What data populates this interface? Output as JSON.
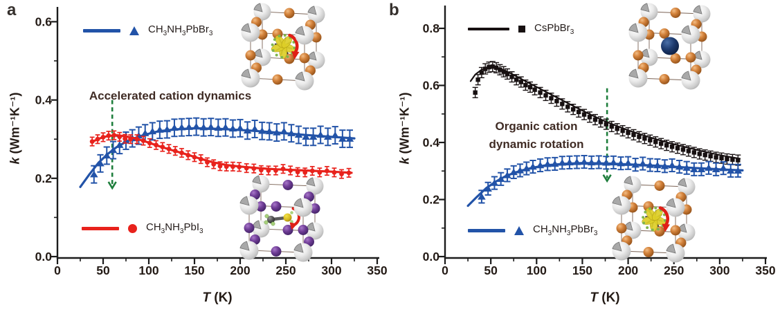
{
  "figure": {
    "panel_a": {
      "letter": "a",
      "ylabel_prefix": "k",
      "ylabel_suffix": " (Wm⁻¹K⁻¹)",
      "xlabel_prefix": "T",
      "xlabel_suffix": " (K)"
    },
    "panel_b": {
      "letter": "b",
      "ylabel_prefix": "k",
      "ylabel_suffix": " (Wm⁻¹K⁻¹)",
      "xlabel_prefix": "T",
      "xlabel_suffix": " (K)"
    }
  },
  "chart_data": [
    {
      "panel": "a",
      "type": "scatter",
      "xlabel": "T (K)",
      "ylabel": "k (Wm⁻¹K⁻¹)",
      "xlim": [
        0,
        350
      ],
      "ylim": [
        0,
        0.64
      ],
      "x_ticks": [
        0,
        50,
        100,
        150,
        200,
        250,
        300,
        350
      ],
      "y_ticks": [
        0,
        0.2,
        0.4,
        0.6
      ],
      "y_tick_labels": [
        "0.0",
        "0.2",
        "0.4",
        "0.6"
      ],
      "grid": false,
      "annotation": {
        "text": "Accelerated cation dynamics",
        "color": "#3f2b24",
        "x_k": 124,
        "y_k": 0.41
      },
      "arrow": {
        "x_k": 60,
        "y_from_k": 0.4,
        "y_to_k": 0.175,
        "color": "#1e7e3c"
      },
      "series": [
        {
          "name": "CH3NH3PbBr3",
          "formula": "CH_3NH_3PbBr_3",
          "color": "#2253a8",
          "marker": "triangle",
          "err": 0.022,
          "x": [
            40,
            47,
            54,
            61,
            68,
            75,
            82,
            89,
            96,
            104,
            112,
            120,
            128,
            136,
            144,
            152,
            160,
            168,
            176,
            184,
            192,
            200,
            208,
            216,
            224,
            232,
            240,
            248,
            256,
            264,
            272,
            280,
            288,
            296,
            304,
            312,
            320
          ],
          "y": [
            0.21,
            0.238,
            0.258,
            0.272,
            0.285,
            0.296,
            0.302,
            0.309,
            0.315,
            0.32,
            0.324,
            0.325,
            0.329,
            0.33,
            0.331,
            0.332,
            0.33,
            0.331,
            0.329,
            0.33,
            0.327,
            0.328,
            0.322,
            0.326,
            0.321,
            0.32,
            0.317,
            0.32,
            0.315,
            0.311,
            0.306,
            0.306,
            0.311,
            0.306,
            0.31,
            0.301,
            0.301
          ],
          "trend": [
            [
              25,
              0.178
            ],
            [
              35,
              0.21
            ],
            [
              45,
              0.24
            ],
            [
              55,
              0.262
            ],
            [
              65,
              0.28
            ],
            [
              75,
              0.293
            ],
            [
              85,
              0.303
            ],
            [
              95,
              0.311
            ],
            [
              110,
              0.32
            ],
            [
              130,
              0.325
            ],
            [
              150,
              0.328
            ],
            [
              180,
              0.326
            ],
            [
              210,
              0.322
            ],
            [
              240,
              0.317
            ],
            [
              270,
              0.311
            ],
            [
              300,
              0.306
            ],
            [
              325,
              0.302
            ]
          ]
        },
        {
          "name": "CH3NH3PbI3",
          "formula": "CH_3NH_3PbI_3",
          "color": "#e8221c",
          "marker": "circle",
          "err": 0.011,
          "x": [
            38,
            44,
            50,
            56,
            62,
            68,
            74,
            80,
            87,
            94,
            101,
            108,
            115,
            122,
            129,
            136,
            143,
            150,
            157,
            164,
            171,
            178,
            185,
            192,
            199,
            207,
            215,
            223,
            231,
            239,
            247,
            255,
            263,
            271,
            279,
            287,
            295,
            303,
            311,
            319
          ],
          "y": [
            0.294,
            0.3,
            0.305,
            0.309,
            0.31,
            0.306,
            0.301,
            0.3,
            0.3,
            0.296,
            0.29,
            0.285,
            0.28,
            0.275,
            0.27,
            0.265,
            0.259,
            0.254,
            0.249,
            0.241,
            0.236,
            0.231,
            0.23,
            0.23,
            0.229,
            0.226,
            0.225,
            0.221,
            0.22,
            0.22,
            0.224,
            0.22,
            0.216,
            0.215,
            0.219,
            0.215,
            0.219,
            0.215,
            0.211,
            0.214
          ],
          "trend": [
            [
              38,
              0.293
            ],
            [
              45,
              0.301
            ],
            [
              55,
              0.308
            ],
            [
              65,
              0.31
            ],
            [
              75,
              0.307
            ],
            [
              85,
              0.302
            ],
            [
              95,
              0.295
            ],
            [
              110,
              0.283
            ],
            [
              125,
              0.272
            ],
            [
              140,
              0.262
            ],
            [
              155,
              0.251
            ],
            [
              170,
              0.241
            ],
            [
              185,
              0.234
            ],
            [
              200,
              0.23
            ],
            [
              220,
              0.226
            ],
            [
              240,
              0.223
            ],
            [
              260,
              0.221
            ],
            [
              280,
              0.219
            ],
            [
              300,
              0.217
            ],
            [
              322,
              0.214
            ]
          ]
        }
      ],
      "insets": [
        {
          "label": "CH3NH3PbBr3 crystal structure",
          "halide": "Br",
          "cation": "CH3NH3-rotating"
        },
        {
          "label": "CH3NH3PbI3 crystal structure",
          "halide": "I",
          "cation": "CH3NH3-ordered"
        }
      ]
    },
    {
      "panel": "b",
      "type": "scatter",
      "xlabel": "T (K)",
      "ylabel": "k (Wm⁻¹K⁻¹)",
      "xlim": [
        0,
        350
      ],
      "ylim": [
        0,
        0.88
      ],
      "x_ticks": [
        0,
        50,
        100,
        150,
        200,
        250,
        300,
        350
      ],
      "y_ticks": [
        0,
        0.2,
        0.4,
        0.6,
        0.8
      ],
      "y_tick_labels": [
        "0.0",
        "0.2",
        "0.4",
        "0.6",
        "0.8"
      ],
      "grid": false,
      "annotation": {
        "text": "Organic cation\ndynamic rotation",
        "color": "#3f2b24",
        "x_k": 100,
        "y_k": 0.45
      },
      "arrow": {
        "x_k": 177,
        "y_from_k": 0.59,
        "y_to_k": 0.265,
        "color": "#1e7e3c"
      },
      "series": [
        {
          "name": "CsPbBr3",
          "formula": "CsPbBr_3",
          "color": "#171011",
          "marker": "square",
          "err": 0.018,
          "x": [
            33,
            36,
            40,
            44,
            48,
            52,
            56,
            60,
            64,
            68,
            73,
            78,
            83,
            88,
            93,
            98,
            104,
            110,
            116,
            122,
            128,
            134,
            140,
            146,
            152,
            158,
            164,
            170,
            176,
            182,
            188,
            194,
            200,
            206,
            212,
            218,
            224,
            230,
            236,
            242,
            248,
            254,
            260,
            266,
            272,
            278,
            284,
            290,
            296,
            302,
            308,
            314,
            320
          ],
          "y": [
            0.575,
            0.62,
            0.645,
            0.658,
            0.664,
            0.666,
            0.662,
            0.655,
            0.648,
            0.64,
            0.63,
            0.62,
            0.612,
            0.601,
            0.594,
            0.585,
            0.575,
            0.565,
            0.555,
            0.545,
            0.535,
            0.525,
            0.516,
            0.507,
            0.498,
            0.489,
            0.48,
            0.472,
            0.464,
            0.456,
            0.448,
            0.441,
            0.434,
            0.427,
            0.42,
            0.414,
            0.408,
            0.402,
            0.396,
            0.39,
            0.385,
            0.38,
            0.375,
            0.37,
            0.365,
            0.36,
            0.356,
            0.352,
            0.348,
            0.345,
            0.342,
            0.34,
            0.338
          ],
          "trend": [
            [
              28,
              0.615
            ],
            [
              33,
              0.638
            ],
            [
              40,
              0.655
            ],
            [
              48,
              0.665
            ],
            [
              55,
              0.665
            ],
            [
              62,
              0.657
            ],
            [
              70,
              0.645
            ],
            [
              80,
              0.628
            ],
            [
              95,
              0.603
            ],
            [
              110,
              0.578
            ],
            [
              125,
              0.553
            ],
            [
              140,
              0.528
            ],
            [
              155,
              0.504
            ],
            [
              170,
              0.481
            ],
            [
              185,
              0.461
            ],
            [
              200,
              0.443
            ],
            [
              215,
              0.427
            ],
            [
              230,
              0.412
            ],
            [
              245,
              0.398
            ],
            [
              260,
              0.386
            ],
            [
              275,
              0.374
            ],
            [
              290,
              0.363
            ],
            [
              305,
              0.353
            ],
            [
              322,
              0.343
            ]
          ]
        },
        {
          "name": "CH3NH3PbBr3",
          "formula": "CH_3NH_3PbBr_3",
          "color": "#2253a8",
          "marker": "triangle",
          "err": 0.022,
          "x": [
            40,
            47,
            54,
            61,
            68,
            75,
            82,
            89,
            96,
            104,
            112,
            120,
            128,
            136,
            144,
            152,
            160,
            168,
            176,
            184,
            192,
            200,
            208,
            216,
            224,
            232,
            240,
            248,
            256,
            264,
            272,
            280,
            288,
            296,
            304,
            312,
            320
          ],
          "y": [
            0.21,
            0.238,
            0.258,
            0.272,
            0.285,
            0.296,
            0.302,
            0.309,
            0.315,
            0.32,
            0.324,
            0.325,
            0.329,
            0.33,
            0.331,
            0.332,
            0.33,
            0.331,
            0.329,
            0.33,
            0.327,
            0.328,
            0.322,
            0.326,
            0.321,
            0.32,
            0.317,
            0.32,
            0.315,
            0.311,
            0.306,
            0.306,
            0.311,
            0.306,
            0.31,
            0.301,
            0.301
          ],
          "trend": [
            [
              25,
              0.178
            ],
            [
              35,
              0.21
            ],
            [
              45,
              0.24
            ],
            [
              55,
              0.262
            ],
            [
              65,
              0.28
            ],
            [
              75,
              0.293
            ],
            [
              85,
              0.303
            ],
            [
              95,
              0.311
            ],
            [
              110,
              0.32
            ],
            [
              130,
              0.325
            ],
            [
              150,
              0.328
            ],
            [
              180,
              0.326
            ],
            [
              210,
              0.322
            ],
            [
              240,
              0.317
            ],
            [
              270,
              0.311
            ],
            [
              300,
              0.306
            ],
            [
              325,
              0.302
            ]
          ]
        }
      ],
      "insets": [
        {
          "label": "CsPbBr3 crystal structure",
          "halide": "Br",
          "cation": "Cs"
        },
        {
          "label": "CH3NH3PbBr3 crystal structure",
          "halide": "Br",
          "cation": "CH3NH3-rotating"
        }
      ]
    }
  ]
}
